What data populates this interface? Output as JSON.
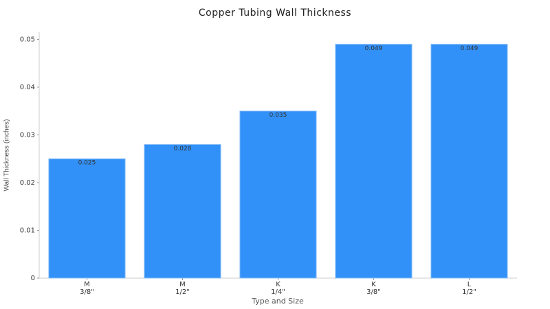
{
  "chart_data": {
    "type": "bar",
    "title": "Copper Tubing Wall Thickness",
    "x_label": "Type and Size",
    "y_label": "Wall Thickness (inches)",
    "categories": [
      "M\n3/8\"",
      "M\n1/2\"",
      "K\n1/4\"",
      "K\n3/8\"",
      "L\n1/2\""
    ],
    "values": [
      0.025,
      0.028,
      0.035,
      0.049,
      0.049
    ],
    "color": "#3291f8",
    "ylim": [
      0,
      0.0515
    ],
    "yticks": [
      0,
      0.01,
      0.02,
      0.03,
      0.04,
      0.05
    ],
    "grid": false
  }
}
